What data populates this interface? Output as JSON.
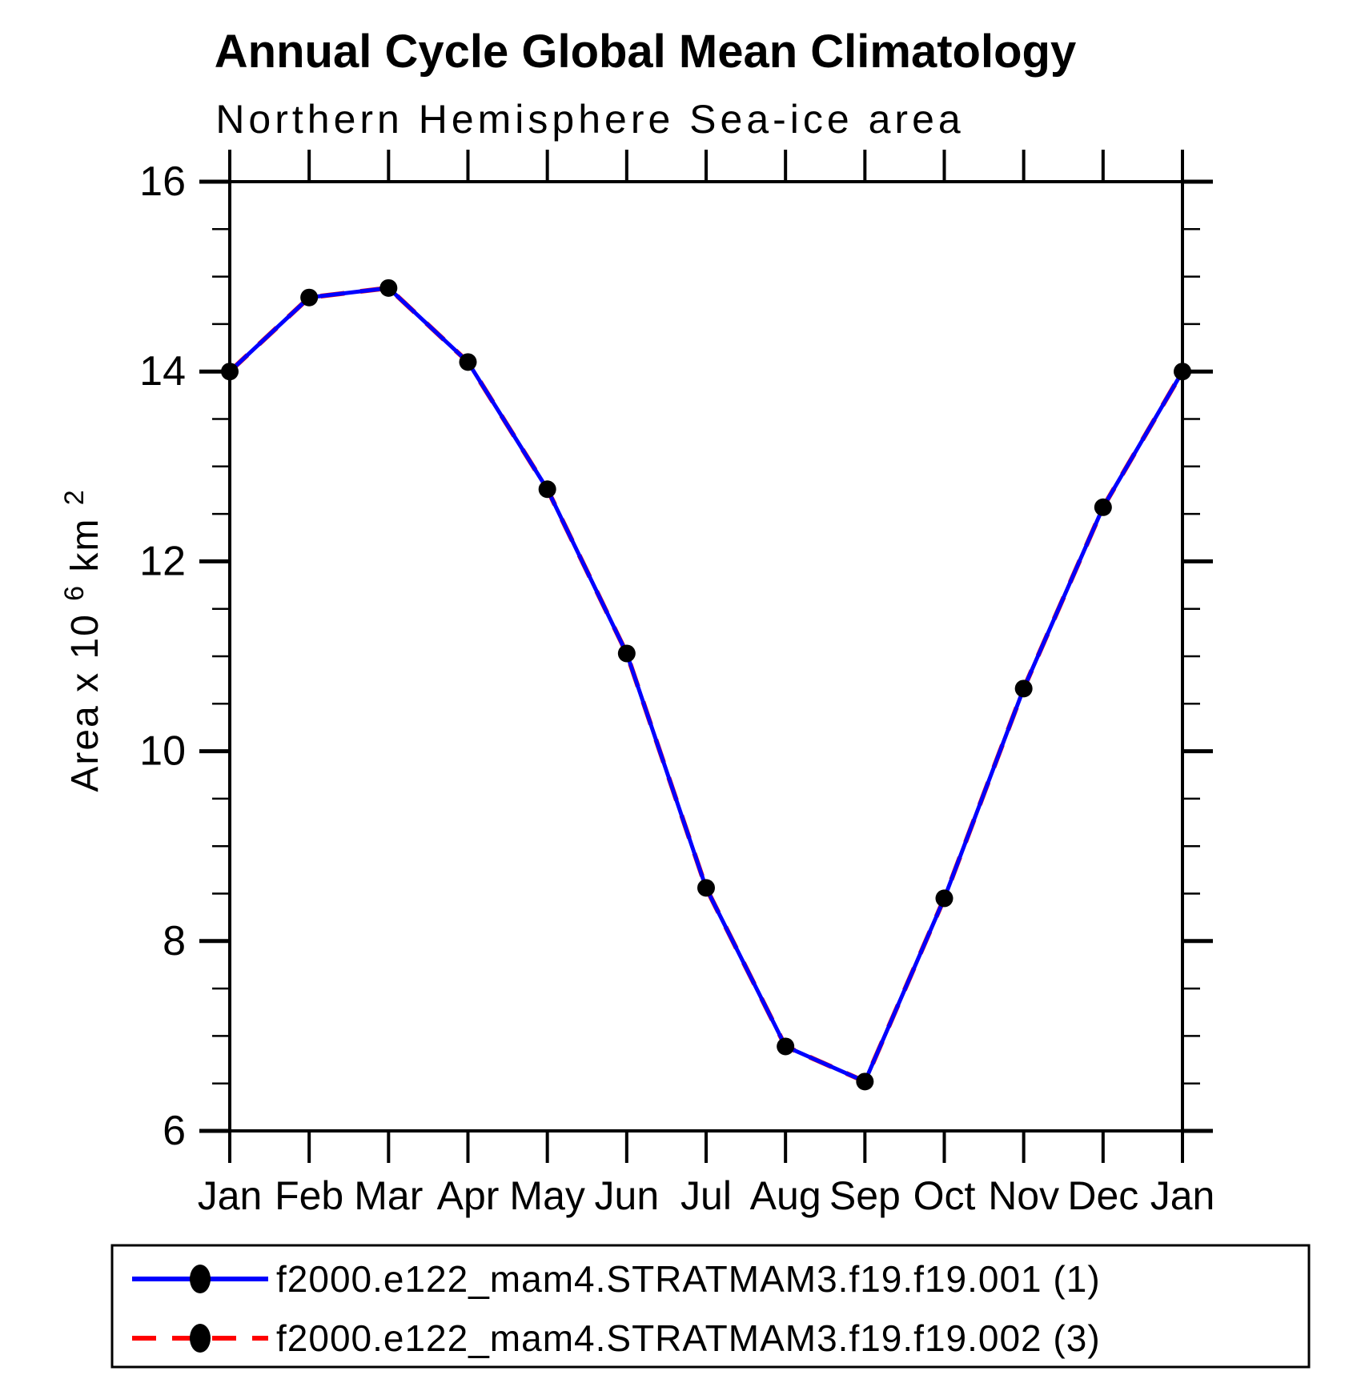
{
  "title": "Annual Cycle Global Mean Climatology",
  "subtitle": "Northern Hemisphere Sea-ice area",
  "ylabel": {
    "plain": "Area x 10^6 km^2",
    "base1": "Area x 10",
    "sup1": "6",
    "base2": " km",
    "sup2": "2"
  },
  "chart_data": {
    "type": "line",
    "categories": [
      "Jan",
      "Feb",
      "Mar",
      "Apr",
      "May",
      "Jun",
      "Jul",
      "Aug",
      "Sep",
      "Oct",
      "Nov",
      "Dec",
      "Jan"
    ],
    "series": [
      {
        "name": "f2000.e122_mam4.STRATMAM3.f19.f19.001 (1)",
        "color": "#0000ff",
        "line_style": "solid",
        "marker": "black-dot",
        "values": [
          14.0,
          14.78,
          14.88,
          14.1,
          12.76,
          11.03,
          8.56,
          6.89,
          6.52,
          8.45,
          10.66,
          12.57,
          14.0
        ]
      },
      {
        "name": "f2000.e122_mam4.STRATMAM3.f19.f19.002 (3)",
        "color": "#ff0000",
        "line_style": "dashed",
        "marker": "black-dot",
        "values": [
          14.0,
          14.78,
          14.88,
          14.1,
          12.76,
          11.03,
          8.56,
          6.89,
          6.52,
          8.45,
          10.66,
          12.57,
          14.0
        ],
        "note": "overlaps series 1 exactly; hidden beneath the solid blue line"
      }
    ],
    "ylim": [
      6,
      16
    ],
    "yticks_major": [
      6,
      8,
      10,
      12,
      14,
      16
    ],
    "ytick_minor_step": 0.5,
    "xlabel": "",
    "ylabel": "Area x 10^6 km^2",
    "grid": false,
    "legend_position": "bottom",
    "marker_color": "#000000",
    "axis_color": "#000000"
  },
  "legend": {
    "entries": [
      {
        "label": "f2000.e122_mam4.STRATMAM3.f19.f19.001  (1)"
      },
      {
        "label": "f2000.e122_mam4.STRATMAM3.f19.f19.002  (3)"
      }
    ]
  }
}
